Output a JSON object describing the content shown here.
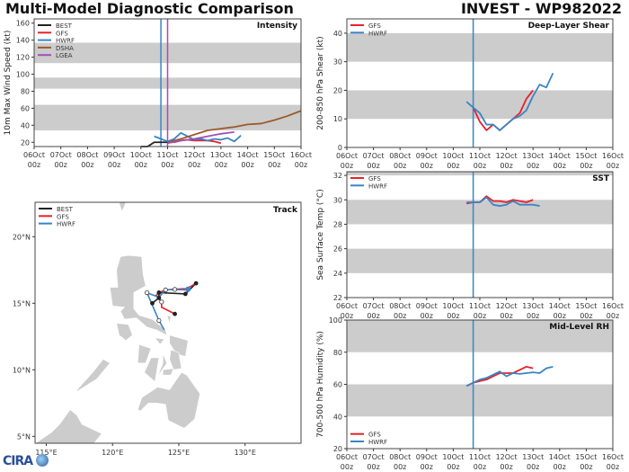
{
  "header": {
    "title": "Multi-Model Diagnostic Comparison",
    "storm": "INVEST - WP982022"
  },
  "logo": "CIRA",
  "colors": {
    "BEST": "#222222",
    "GFS": "#e8212a",
    "HWRF": "#3a85c5",
    "DSHA": "#9c5a2b",
    "LGEA": "#a34fb5",
    "band": "#cccccc",
    "land": "#cccccc"
  },
  "x_ticks": [
    "06Oct",
    "07Oct",
    "08Oct",
    "09Oct",
    "10Oct",
    "11Oct",
    "12Oct",
    "13Oct",
    "14Oct",
    "15Oct",
    "16Oct"
  ],
  "x_tick_sub": "00z",
  "chart_data": [
    {
      "type": "line",
      "title": "Intensity",
      "ylabel": "10m Max Wind Speed (kt)",
      "ylim": [
        15,
        165
      ],
      "yticks": [
        20,
        40,
        60,
        80,
        100,
        120,
        140,
        160
      ],
      "bands": [
        [
          34,
          64
        ],
        [
          83,
          96
        ],
        [
          113,
          137
        ]
      ],
      "legend": "top-left",
      "vlines": [
        {
          "x": "10Oct18z",
          "series": "HWRF"
        },
        {
          "x": "11Oct00z",
          "series": "LGEA"
        }
      ],
      "series": [
        {
          "name": "BEST",
          "x": [
            "10Oct00z",
            "10Oct06z",
            "10Oct12z",
            "10Oct18z",
            "11Oct00z"
          ],
          "y": [
            15,
            15,
            20,
            20,
            20
          ]
        },
        {
          "name": "GFS",
          "x": [
            "11Oct00z",
            "11Oct06z",
            "11Oct12z",
            "11Oct18z",
            "12Oct00z",
            "12Oct06z",
            "12Oct12z",
            "12Oct18z",
            "13Oct00z"
          ],
          "y": [
            20,
            20,
            22,
            23,
            22,
            22,
            22,
            21,
            19
          ]
        },
        {
          "name": "HWRF",
          "x": [
            "10Oct12z",
            "10Oct18z",
            "11Oct00z",
            "11Oct06z",
            "11Oct12z",
            "11Oct18z",
            "12Oct00z",
            "12Oct06z",
            "12Oct12z",
            "12Oct18z",
            "13Oct00z",
            "13Oct06z",
            "13Oct12z",
            "13Oct18z"
          ],
          "y": [
            27,
            24,
            21,
            24,
            31,
            27,
            23,
            24,
            22,
            24,
            23,
            25,
            21,
            28
          ]
        },
        {
          "name": "DSHA",
          "x": [
            "11Oct00z",
            "11Oct12z",
            "12Oct00z",
            "12Oct12z",
            "13Oct00z",
            "13Oct12z",
            "14Oct00z",
            "14Oct12z",
            "15Oct00z",
            "15Oct12z",
            "16Oct00z"
          ],
          "y": [
            20,
            24,
            29,
            34,
            36,
            38,
            41,
            42,
            46,
            51,
            57
          ]
        },
        {
          "name": "LGEA",
          "x": [
            "11Oct00z",
            "11Oct12z",
            "12Oct00z",
            "12Oct12z",
            "13Oct00z",
            "13Oct12z"
          ],
          "y": [
            19,
            22,
            24,
            27,
            30,
            32
          ]
        }
      ]
    },
    {
      "type": "line",
      "title": "Deep-Layer Shear",
      "ylabel": "200-850 hPa Shear (kt)",
      "ylim": [
        0,
        45
      ],
      "yticks": [
        0,
        10,
        20,
        30,
        40
      ],
      "bands": [
        [
          10,
          20
        ],
        [
          30,
          40
        ]
      ],
      "legend": "top-left",
      "vlines": [
        {
          "x": "10Oct18z",
          "series": "HWRF"
        }
      ],
      "series": [
        {
          "name": "GFS",
          "x": [
            "10Oct18z",
            "11Oct00z",
            "11Oct06z",
            "11Oct12z",
            "11Oct18z",
            "12Oct00z",
            "12Oct06z",
            "12Oct12z",
            "12Oct18z",
            "13Oct00z"
          ],
          "y": [
            14,
            9,
            6,
            8,
            6,
            8,
            10,
            12,
            17,
            20
          ]
        },
        {
          "name": "HWRF",
          "x": [
            "10Oct12z",
            "10Oct18z",
            "11Oct00z",
            "11Oct06z",
            "11Oct12z",
            "11Oct18z",
            "12Oct00z",
            "12Oct06z",
            "12Oct12z",
            "12Oct18z",
            "13Oct00z",
            "13Oct06z",
            "13Oct12z",
            "13Oct18z"
          ],
          "y": [
            16,
            14,
            12,
            8,
            8,
            6,
            8,
            10,
            11,
            13,
            18,
            22,
            21,
            26
          ]
        }
      ]
    },
    {
      "type": "line",
      "title": "SST",
      "ylabel": "Sea Surface Temp (°C)",
      "ylim": [
        22,
        32.3
      ],
      "yticks": [
        22,
        24,
        26,
        28,
        30,
        32
      ],
      "bands": [
        [
          24,
          26
        ],
        [
          28,
          30
        ],
        [
          32,
          32.3
        ]
      ],
      "legend": "top-left",
      "vlines": [
        {
          "x": "10Oct18z",
          "series": "HWRF"
        }
      ],
      "series": [
        {
          "name": "GFS",
          "x": [
            "10Oct12z",
            "10Oct18z",
            "11Oct00z",
            "11Oct06z",
            "11Oct12z",
            "11Oct18z",
            "12Oct00z",
            "12Oct06z",
            "12Oct12z",
            "12Oct18z",
            "13Oct00z"
          ],
          "y": [
            29.7,
            29.8,
            29.8,
            30.3,
            29.9,
            29.9,
            29.8,
            30.0,
            29.9,
            29.8,
            30.0
          ]
        },
        {
          "name": "HWRF",
          "x": [
            "10Oct12z",
            "10Oct18z",
            "11Oct00z",
            "11Oct06z",
            "11Oct12z",
            "11Oct18z",
            "12Oct00z",
            "12Oct06z",
            "12Oct12z",
            "12Oct18z",
            "13Oct00z",
            "13Oct06z"
          ],
          "y": [
            29.8,
            29.8,
            29.8,
            30.2,
            29.6,
            29.5,
            29.6,
            29.9,
            29.6,
            29.6,
            29.6,
            29.5
          ]
        }
      ]
    },
    {
      "type": "line",
      "title": "Mid-Level RH",
      "ylabel": "700-500 hPa Humidity (%)",
      "ylim": [
        20,
        100
      ],
      "yticks": [
        20,
        40,
        60,
        80,
        100
      ],
      "bands": [
        [
          40,
          60
        ],
        [
          80,
          100
        ]
      ],
      "legend": "bottom-left",
      "vlines": [
        {
          "x": "10Oct18z",
          "series": "HWRF"
        }
      ],
      "series": [
        {
          "name": "GFS",
          "x": [
            "10Oct12z",
            "10Oct18z",
            "11Oct00z",
            "11Oct06z",
            "11Oct12z",
            "11Oct18z",
            "12Oct00z",
            "12Oct06z",
            "12Oct12z",
            "12Oct18z",
            "13Oct00z"
          ],
          "y": [
            59,
            61,
            62,
            63,
            65,
            67,
            67,
            67,
            69,
            71,
            70
          ]
        },
        {
          "name": "HWRF",
          "x": [
            "10Oct12z",
            "10Oct18z",
            "11Oct00z",
            "11Oct06z",
            "11Oct12z",
            "11Oct18z",
            "12Oct00z",
            "12Oct06z",
            "12Oct12z",
            "12Oct18z",
            "13Oct00z",
            "13Oct06z",
            "13Oct12z",
            "13Oct18z"
          ],
          "y": [
            59,
            61,
            63,
            64,
            66,
            68,
            65,
            67,
            66.5,
            67,
            67.5,
            67,
            70,
            71
          ]
        }
      ]
    },
    {
      "type": "map",
      "title": "Track",
      "legend": "top-left",
      "lon_ticks": [
        {
          "v": 115,
          "label": "115°E"
        },
        {
          "v": 120,
          "label": "120°E"
        },
        {
          "v": 125,
          "label": "125°E"
        },
        {
          "v": 130,
          "label": "130°E"
        }
      ],
      "lat_ticks": [
        {
          "v": 5,
          "label": "5°N"
        },
        {
          "v": 10,
          "label": "10°N"
        },
        {
          "v": 15,
          "label": "15°N"
        },
        {
          "v": 20,
          "label": "20°N"
        }
      ],
      "series": [
        {
          "name": "BEST",
          "points": [
            [
              126.3,
              16.5
            ],
            [
              125.5,
              15.7
            ],
            [
              123.5,
              15.8
            ],
            [
              123.5,
              15.4
            ],
            [
              123.0,
              15.0
            ]
          ],
          "markers": "filled"
        },
        {
          "name": "GFS",
          "points": [
            [
              126.3,
              16.5
            ],
            [
              125.6,
              16.1
            ],
            [
              124.7,
              16.06
            ],
            [
              124.0,
              16.0
            ],
            [
              123.5,
              15.8
            ],
            [
              123.3,
              15.6
            ],
            [
              123.7,
              15.1
            ],
            [
              123.7,
              14.7
            ],
            [
              124.7,
              14.2
            ]
          ],
          "markers": "end-filled"
        },
        {
          "name": "HWRF",
          "points": [
            [
              125.7,
              16.06
            ],
            [
              125.5,
              16.0
            ],
            [
              124.7,
              16.04
            ],
            [
              124.0,
              16.0
            ],
            [
              123.5,
              15.45
            ],
            [
              122.6,
              15.79
            ],
            [
              123.5,
              13.7
            ],
            [
              123.9,
              13.0
            ]
          ],
          "markers": "start-dot"
        }
      ],
      "open_markers": [
        [
          122.6,
          15.79
        ],
        [
          123.7,
          15.1
        ],
        [
          123.5,
          13.7
        ],
        [
          124.0,
          16.0
        ],
        [
          124.7,
          16.04
        ]
      ]
    }
  ]
}
